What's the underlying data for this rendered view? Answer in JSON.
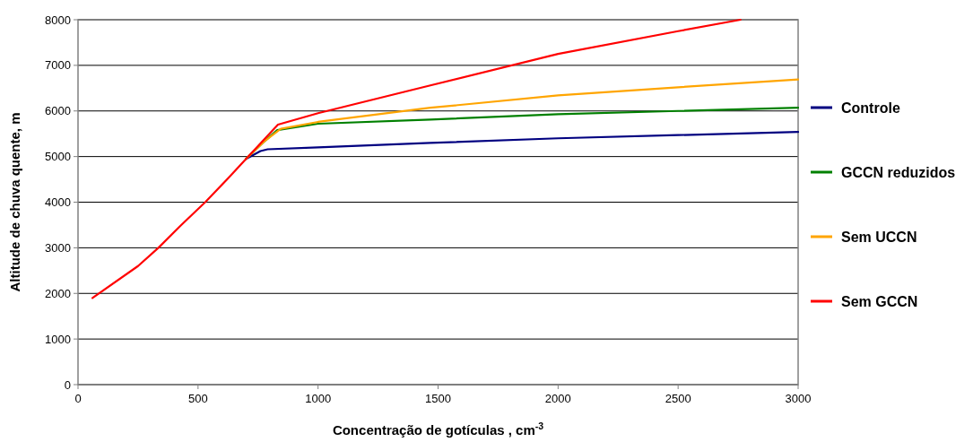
{
  "chart_data": {
    "type": "line",
    "xlabel": "Concentração de gotículas , cm$^{-3}$",
    "ylabel": "Altitude de chuva quente, m",
    "xlim": [
      0,
      3000
    ],
    "ylim": [
      0,
      8000
    ],
    "xticks": [
      0,
      500,
      1000,
      1500,
      2000,
      2500,
      3000
    ],
    "yticks": [
      0,
      1000,
      2000,
      3000,
      4000,
      5000,
      6000,
      7000,
      8000
    ],
    "grid": "y",
    "legend": "right",
    "marker": "none",
    "line_style": "solid",
    "series": [
      {
        "name": "Controle",
        "color": "#000080",
        "x": [
          700,
          760,
          790,
          1000,
          1468,
          2000,
          2500,
          3000
        ],
        "values": [
          4950,
          5120,
          5160,
          5200,
          5300,
          5400,
          5470,
          5540
        ]
      },
      {
        "name": "GCCN reduzidos",
        "color": "#008000",
        "x": [
          700,
          780,
          830,
          1000,
          1468,
          2000,
          2500,
          3000
        ],
        "values": [
          4950,
          5350,
          5580,
          5720,
          5810,
          5930,
          6000,
          6070
        ]
      },
      {
        "name": "Sem UCCN",
        "color": "#ffa500",
        "x": [
          700,
          780,
          845,
          1000,
          1468,
          2000,
          2500,
          3000
        ],
        "values": [
          4950,
          5350,
          5610,
          5760,
          6070,
          6340,
          6520,
          6690
        ]
      },
      {
        "name": "Sem GCCN",
        "color": "#ff0000",
        "x": [
          60,
          250,
          335,
          430,
          530,
          630,
          700,
          780,
          833,
          1000,
          1468,
          2000,
          2500,
          2760
        ],
        "values": [
          1900,
          2600,
          3000,
          3500,
          4000,
          4550,
          4950,
          5400,
          5700,
          5950,
          6560,
          7250,
          7750,
          8000
        ]
      }
    ]
  }
}
